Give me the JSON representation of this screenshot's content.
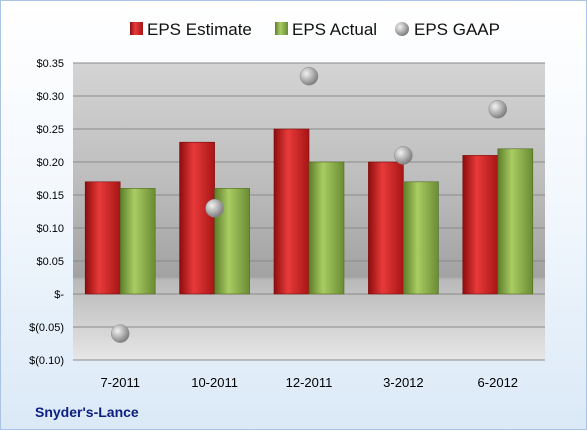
{
  "company_label": "Snyder's-Lance",
  "colors": {
    "estimate": "#cc1f1f",
    "actual": "#8db04a",
    "gaap": "#a8a8a8"
  },
  "chart_data": {
    "type": "bar",
    "categories": [
      "7-2011",
      "10-2011",
      "12-2011",
      "3-2012",
      "6-2012"
    ],
    "series": [
      {
        "name": "EPS Estimate",
        "type": "bar",
        "values": [
          0.17,
          0.23,
          0.25,
          0.2,
          0.21
        ]
      },
      {
        "name": "EPS Actual",
        "type": "bar",
        "values": [
          0.16,
          0.16,
          0.2,
          0.17,
          0.22
        ]
      },
      {
        "name": "EPS GAAP",
        "type": "scatter",
        "values": [
          -0.06,
          0.13,
          0.33,
          0.21,
          0.28
        ]
      }
    ],
    "y_ticks": [
      {
        "value": 0.35,
        "label": "$0.35"
      },
      {
        "value": 0.3,
        "label": "$0.30"
      },
      {
        "value": 0.25,
        "label": "$0.25"
      },
      {
        "value": 0.2,
        "label": "$0.20"
      },
      {
        "value": 0.15,
        "label": "$0.15"
      },
      {
        "value": 0.1,
        "label": "$0.10"
      },
      {
        "value": 0.05,
        "label": "$0.05"
      },
      {
        "value": 0.0,
        "label": "$-"
      },
      {
        "value": -0.05,
        "label": "$(0.05)"
      },
      {
        "value": -0.1,
        "label": "$(0.10)"
      }
    ],
    "ylim": [
      -0.1,
      0.35
    ],
    "grid": true,
    "legend_position": "top"
  }
}
